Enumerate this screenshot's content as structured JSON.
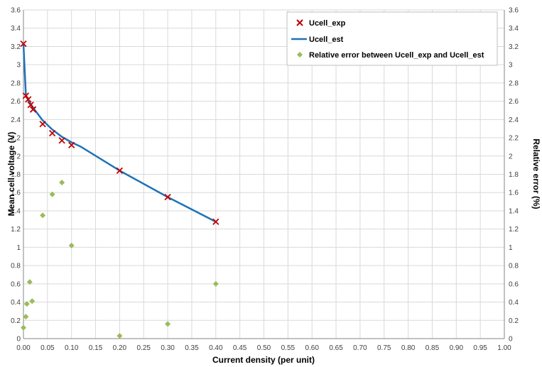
{
  "chart_data": {
    "type": "scatter",
    "xlabel": "Current density (per unit)",
    "ylabel": "Mean cell voltage (V)",
    "y2label": "Relative error (%)",
    "xlim": [
      0,
      1.0
    ],
    "ylim": [
      0,
      3.6
    ],
    "y2lim": [
      0,
      3.6
    ],
    "x_ticks": [
      "0.00",
      "0.05",
      "0.10",
      "0.15",
      "0.20",
      "0.25",
      "0.30",
      "0.35",
      "0.40",
      "0.45",
      "0.50",
      "0.55",
      "0.60",
      "0.65",
      "0.70",
      "0.75",
      "0.80",
      "0.85",
      "0.90",
      "0.95",
      "1.00"
    ],
    "y_ticks": [
      "0",
      "0.2",
      "0.4",
      "0.6",
      "0.8",
      "1",
      "1.2",
      "1.4",
      "1.6",
      "1.8",
      "2",
      "2.2",
      "2.4",
      "2.6",
      "2.8",
      "3",
      "3.2",
      "3.4",
      "3.6"
    ],
    "grid": true,
    "legend_position": "top-right",
    "series": [
      {
        "name": "Ucell_exp",
        "kind": "scatter-x",
        "axis": "left",
        "color": "#c00000",
        "x": [
          0.0,
          0.005,
          0.01,
          0.015,
          0.02,
          0.04,
          0.06,
          0.08,
          0.1,
          0.2,
          0.3,
          0.4
        ],
        "y": [
          3.23,
          2.66,
          2.62,
          2.56,
          2.51,
          2.35,
          2.25,
          2.17,
          2.12,
          1.84,
          1.55,
          1.28
        ]
      },
      {
        "name": "Ucell_est",
        "kind": "line",
        "axis": "left",
        "color": "#1f72b8",
        "x": [
          0.0,
          0.005,
          0.01,
          0.015,
          0.02,
          0.04,
          0.06,
          0.08,
          0.1,
          0.12,
          0.2,
          0.3,
          0.4
        ],
        "y": [
          3.23,
          2.67,
          2.61,
          2.57,
          2.53,
          2.39,
          2.29,
          2.21,
          2.15,
          2.1,
          1.84,
          1.55,
          1.28
        ]
      },
      {
        "name": "Relative error between Ucell_exp and Ucell_est",
        "kind": "scatter-diamond",
        "axis": "right",
        "color": "#9bbb59",
        "x": [
          0.0,
          0.005,
          0.007,
          0.013,
          0.018,
          0.04,
          0.06,
          0.08,
          0.1,
          0.2,
          0.3,
          0.4
        ],
        "y": [
          0.12,
          0.24,
          0.38,
          0.62,
          0.41,
          1.35,
          1.58,
          1.71,
          1.02,
          0.03,
          0.16,
          0.6
        ]
      }
    ]
  }
}
